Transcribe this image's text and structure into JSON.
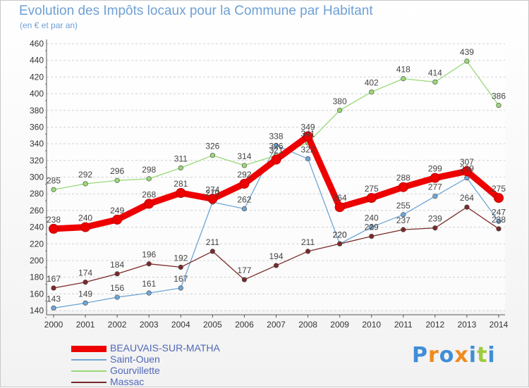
{
  "chart_data": {
    "type": "line",
    "title": "Evolution des Impôts locaux pour la Commune par Habitant",
    "subtitle": "(en € et par an)",
    "xlabel": "",
    "ylabel": "",
    "categories": [
      "2000",
      "2001",
      "2002",
      "2003",
      "2004",
      "2005",
      "2006",
      "2007",
      "2008",
      "2009",
      "2010",
      "2011",
      "2012",
      "2013",
      "2014"
    ],
    "ylim": [
      140,
      460
    ],
    "yticks": [
      "140",
      "160",
      "180",
      "200",
      "220",
      "240",
      "260",
      "280",
      "300",
      "320",
      "340",
      "360",
      "380",
      "400",
      "420",
      "440",
      "460"
    ],
    "grid": "dashed horizontal",
    "legend_position": "bottom-left",
    "series": [
      {
        "name": "BEAUVAIS-SUR-MATHA",
        "color": "#ee0000",
        "values": [
          238,
          240,
          249,
          268,
          281,
          274,
          292,
          321,
          349,
          264,
          275,
          288,
          299,
          307,
          275
        ]
      },
      {
        "name": "Saint-Ouen",
        "color": "#6ea6d6",
        "values": [
          143,
          149,
          156,
          161,
          167,
          270,
          262,
          338,
          322,
          220,
          240,
          255,
          277,
          299,
          247
        ]
      },
      {
        "name": "Gourvillette",
        "color": "#99d878",
        "values": [
          285,
          292,
          296,
          298,
          311,
          326,
          314,
          326,
          341,
          380,
          402,
          418,
          414,
          439,
          386
        ]
      },
      {
        "name": "Massac",
        "color": "#7a2a2a",
        "values": [
          167,
          174,
          184,
          196,
          192,
          211,
          177,
          194,
          211,
          220,
          229,
          237,
          239,
          264,
          238
        ]
      }
    ]
  },
  "brand": {
    "text": "Proxiti",
    "colors": [
      "#3f8ed6",
      "#f08a1c",
      "#3f8ed6",
      "#f08a1c",
      "#3f8ed6",
      "#9ccc3a",
      "#3f8ed6"
    ]
  }
}
